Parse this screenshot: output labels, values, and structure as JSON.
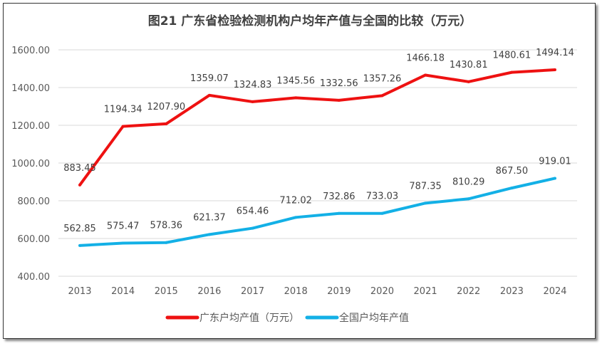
{
  "chart_data": {
    "type": "line",
    "title": "图21  广东省检验检测机构户均年产值与全国的比较（万元）",
    "categories": [
      "2013",
      "2014",
      "2015",
      "2016",
      "2017",
      "2018",
      "2019",
      "2020",
      "2021",
      "2022",
      "2023",
      "2024"
    ],
    "series": [
      {
        "name": "广东户均产值（万元）",
        "color": "#ee1111",
        "values": [
          883.45,
          1194.34,
          1207.9,
          1359.07,
          1324.83,
          1345.56,
          1332.56,
          1357.26,
          1466.18,
          1430.81,
          1480.61,
          1494.14
        ]
      },
      {
        "name": "全国户均年产值",
        "color": "#13b0e6",
        "values": [
          562.85,
          575.47,
          578.36,
          621.37,
          654.46,
          712.02,
          732.86,
          733.03,
          787.35,
          810.29,
          867.5,
          919.01
        ]
      }
    ],
    "ylim": [
      400,
      1600
    ],
    "yticks": [
      "400.00",
      "600.00",
      "800.00",
      "1000.00",
      "1200.00",
      "1400.00",
      "1600.00"
    ],
    "grid": true,
    "legend": "bottom"
  }
}
